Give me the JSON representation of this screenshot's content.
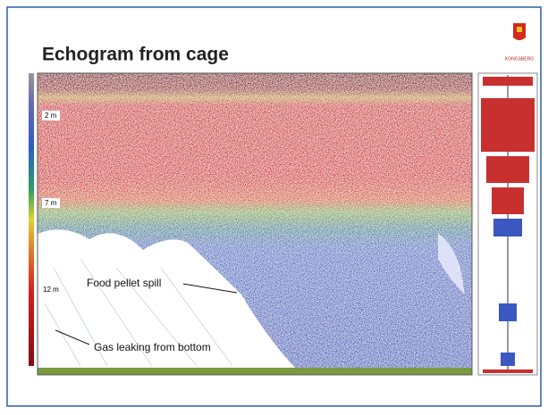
{
  "slide": {
    "title": "Echogram from cage",
    "logo": "KONGSBERG",
    "depth_labels": [
      "2 m",
      "7 m",
      "12 m"
    ],
    "annotations": [
      "Food pellet spill",
      "Gas leaking from bottom"
    ]
  }
}
